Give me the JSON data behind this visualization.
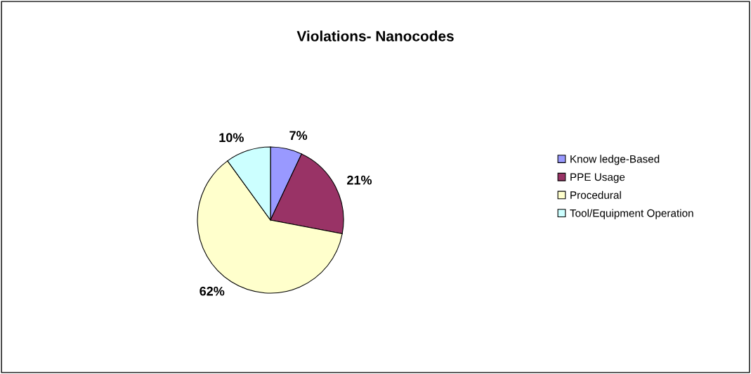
{
  "chart_data": {
    "type": "pie",
    "title": "Violations- Nanocodes",
    "categories": [
      "Know ledge-Based",
      "PPE Usage",
      "Procedural",
      "Tool/Equipment Operation"
    ],
    "values": [
      7,
      21,
      62,
      10
    ],
    "colors": [
      "#9999ff",
      "#993366",
      "#ffffcc",
      "#ccffff"
    ],
    "value_labels": [
      "7%",
      "21%",
      "62%",
      "10%"
    ],
    "legend": "right"
  }
}
